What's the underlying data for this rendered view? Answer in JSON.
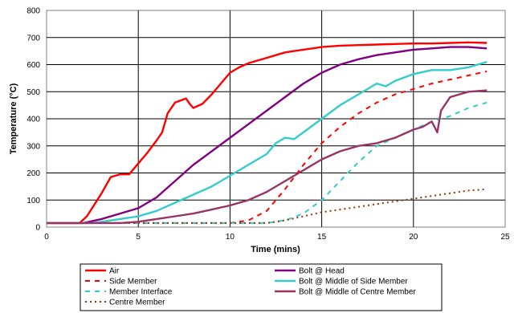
{
  "chart_data": {
    "type": "line",
    "xlabel": "Time (mins)",
    "ylabel": "Temperature (°C)",
    "xlim": [
      0,
      25
    ],
    "ylim": [
      0,
      800
    ],
    "xticks": [
      0,
      5,
      10,
      15,
      20,
      25
    ],
    "yticks": [
      0,
      100,
      200,
      300,
      400,
      500,
      600,
      700,
      800
    ],
    "grid": true,
    "legend_position": "bottom",
    "series": [
      {
        "name": "Air",
        "color": "#ff0000",
        "style": "solid",
        "x": [
          0,
          1.8,
          2.2,
          3,
          3.5,
          4,
          4.5,
          5,
          5.5,
          6,
          6.3,
          6.6,
          7,
          7.2,
          7.4,
          7.6,
          7.8,
          8,
          8.5,
          9,
          9.5,
          10,
          10.5,
          11,
          11.5,
          12,
          12.5,
          13,
          13.5,
          14,
          14.5,
          15,
          16,
          17,
          18,
          19,
          20,
          21,
          22,
          23,
          24
        ],
        "y": [
          15,
          15,
          40,
          125,
          185,
          195,
          195,
          235,
          275,
          320,
          350,
          420,
          460,
          465,
          470,
          475,
          455,
          440,
          455,
          490,
          530,
          570,
          590,
          605,
          615,
          625,
          635,
          645,
          650,
          655,
          660,
          665,
          670,
          672,
          674,
          676,
          678,
          678,
          680,
          682,
          680
        ]
      },
      {
        "name": "Side Member",
        "color": "#ff0000",
        "style": "dash",
        "x": [
          0,
          10,
          11,
          12,
          13,
          14,
          15,
          16,
          17,
          18,
          19,
          20,
          21,
          22,
          23,
          24
        ],
        "y": [
          15,
          15,
          25,
          60,
          140,
          230,
          310,
          370,
          420,
          460,
          490,
          510,
          530,
          545,
          560,
          575
        ]
      },
      {
        "name": "Member Interface",
        "color": "#33cccc",
        "style": "dash",
        "x": [
          0,
          12,
          13,
          14,
          15,
          16,
          17,
          18,
          19,
          20,
          21,
          22,
          23,
          24
        ],
        "y": [
          15,
          15,
          25,
          50,
          100,
          170,
          240,
          300,
          330,
          360,
          390,
          410,
          440,
          460
        ]
      },
      {
        "name": "Centre Member",
        "color": "#993300",
        "style": "dot",
        "x": [
          0,
          12,
          13,
          14,
          15,
          16,
          17,
          18,
          19,
          20,
          21,
          22,
          23,
          24
        ],
        "y": [
          15,
          15,
          25,
          40,
          55,
          65,
          75,
          85,
          95,
          105,
          115,
          125,
          135,
          140
        ]
      },
      {
        "name": "Bolt @ Head",
        "color": "#800080",
        "style": "solid",
        "x": [
          0,
          2,
          3,
          4,
          5,
          6,
          7,
          8,
          9,
          10,
          11,
          12,
          13,
          14,
          15,
          16,
          17,
          18,
          19,
          20,
          21,
          22,
          23,
          24
        ],
        "y": [
          15,
          15,
          30,
          50,
          70,
          110,
          170,
          230,
          280,
          330,
          380,
          430,
          480,
          530,
          570,
          600,
          620,
          635,
          645,
          655,
          660,
          665,
          665,
          660
        ]
      },
      {
        "name": "Bolt @ Middle of Side Member",
        "color": "#33cccc",
        "style": "solid",
        "x": [
          0,
          2.5,
          3,
          4,
          5,
          6,
          7,
          8,
          9,
          10,
          11,
          12,
          12.5,
          13,
          13.5,
          14,
          15,
          16,
          17,
          18,
          18.5,
          19,
          20,
          21,
          22,
          23,
          24
        ],
        "y": [
          15,
          15,
          20,
          30,
          40,
          60,
          90,
          120,
          150,
          190,
          230,
          270,
          310,
          330,
          325,
          350,
          400,
          450,
          490,
          530,
          520,
          540,
          565,
          580,
          580,
          590,
          610
        ]
      },
      {
        "name": "Bolt @ Middle of Centre Member",
        "color": "#993366",
        "style": "solid",
        "x": [
          0,
          4,
          5,
          6,
          7,
          8,
          9,
          10,
          11,
          12,
          13,
          14,
          15,
          16,
          17,
          18,
          19,
          20,
          20.5,
          21,
          21.3,
          21.5,
          22,
          23,
          24
        ],
        "y": [
          15,
          15,
          20,
          30,
          40,
          50,
          65,
          80,
          100,
          130,
          170,
          210,
          250,
          280,
          300,
          310,
          330,
          360,
          370,
          390,
          350,
          430,
          480,
          500,
          505
        ]
      }
    ]
  }
}
